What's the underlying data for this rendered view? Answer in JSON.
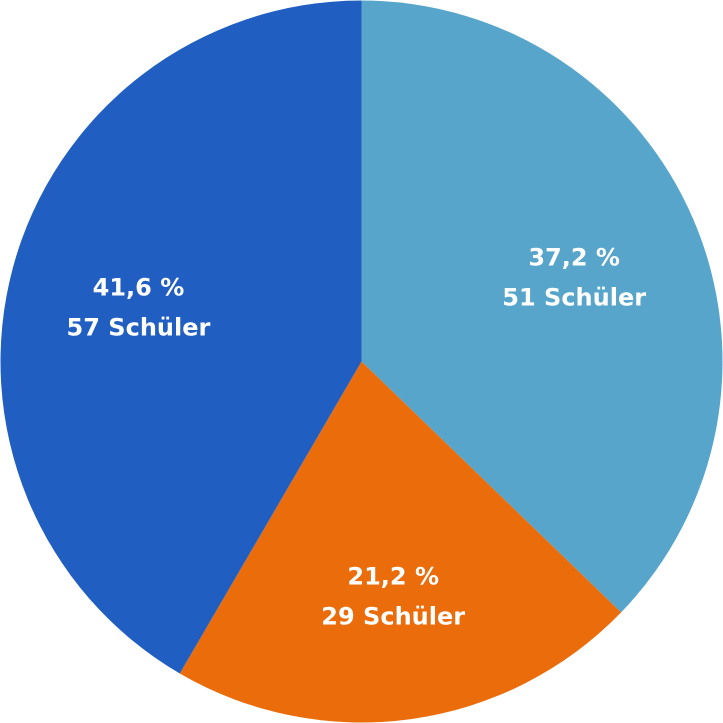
{
  "chart_data": {
    "type": "pie",
    "title": "",
    "slices": [
      {
        "percent_label": "37,2 %",
        "count_label": "51 Schüler",
        "value": 51,
        "percent": 37.2,
        "color": "#57A5CA"
      },
      {
        "percent_label": "21,2 %",
        "count_label": "29 Schüler",
        "value": 29,
        "percent": 21.2,
        "color": "#EA6C0A"
      },
      {
        "percent_label": "41,6 %",
        "count_label": "57 Schüler",
        "value": 57,
        "percent": 41.6,
        "color": "#205FC1"
      }
    ],
    "start_angle_deg": 0,
    "direction": "clockwise",
    "legend": "none"
  }
}
